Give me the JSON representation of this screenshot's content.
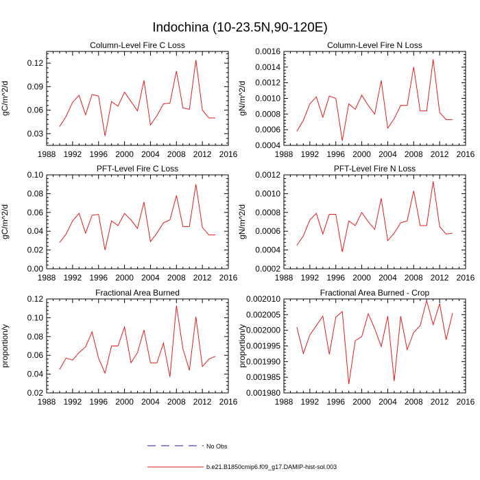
{
  "figure": {
    "title": "Indochina (10-23.5N,90-120E)"
  },
  "legend": {
    "items": [
      {
        "label": "No Obs",
        "color": "#1a1aa8",
        "style": "dashed"
      },
      {
        "label": "b.e21.B1850cmip6.f09_g17.DAMIP-hist-sol.003",
        "color": "#e41a1c",
        "style": "solid"
      }
    ]
  },
  "colors": {
    "model": "#e41a1c",
    "obs": "#1a1aa8"
  },
  "chart_data": [
    {
      "type": "line",
      "title": "Column-Level Fire C Loss",
      "xlabel": "",
      "ylabel": "gC/m^2/d",
      "xlim": [
        1988,
        2016
      ],
      "ylim": [
        0.015,
        0.135
      ],
      "xticks": [
        1988,
        1992,
        1996,
        2000,
        2004,
        2008,
        2012,
        2016
      ],
      "yticks": [
        0.03,
        0.06,
        0.09,
        0.12
      ],
      "ytick_labels": [
        "0.03",
        "0.06",
        "0.09",
        "0.12"
      ],
      "x": [
        1990,
        1991,
        1992,
        1993,
        1994,
        1995,
        1996,
        1997,
        1998,
        1999,
        2000,
        2001,
        2002,
        2003,
        2004,
        2005,
        2006,
        2007,
        2008,
        2009,
        2010,
        2011,
        2012,
        2013,
        2014
      ],
      "series": [
        {
          "values": [
            0.039,
            0.052,
            0.07,
            0.079,
            0.054,
            0.08,
            0.078,
            0.027,
            0.071,
            0.065,
            0.083,
            0.071,
            0.059,
            0.098,
            0.041,
            0.053,
            0.068,
            0.069,
            0.11,
            0.063,
            0.061,
            0.124,
            0.06,
            0.05,
            0.05
          ]
        }
      ]
    },
    {
      "type": "line",
      "title": "Column-Level Fire N Loss",
      "xlabel": "",
      "ylabel": "gN/m^2/d",
      "xlim": [
        1988,
        2016
      ],
      "ylim": [
        0.0004,
        0.0016
      ],
      "xticks": [
        1988,
        1992,
        1996,
        2000,
        2004,
        2008,
        2012,
        2016
      ],
      "yticks": [
        0.0004,
        0.0006,
        0.0008,
        0.001,
        0.0012,
        0.0014,
        0.0016
      ],
      "ytick_labels": [
        "0.0004",
        "0.0006",
        "0.0008",
        "0.0010",
        "0.0012",
        "0.0014",
        "0.0016"
      ],
      "x": [
        1990,
        1991,
        1992,
        1993,
        1994,
        1995,
        1996,
        1997,
        1998,
        1999,
        2000,
        2001,
        2002,
        2003,
        2004,
        2005,
        2006,
        2007,
        2008,
        2009,
        2010,
        2011,
        2012,
        2013,
        2014
      ],
      "series": [
        {
          "values": [
            0.00058,
            0.00072,
            0.00093,
            0.00102,
            0.00076,
            0.00103,
            0.001,
            0.00046,
            0.00093,
            0.00086,
            0.00104,
            0.00091,
            0.0008,
            0.00123,
            0.00062,
            0.00074,
            0.00091,
            0.00091,
            0.0014,
            0.00084,
            0.00084,
            0.0015,
            0.00082,
            0.00073,
            0.00073
          ]
        }
      ]
    },
    {
      "type": "line",
      "title": "PFT-Level Fire C Loss",
      "xlabel": "",
      "ylabel": "gC/m^2/d",
      "xlim": [
        1988,
        2016
      ],
      "ylim": [
        0.0,
        0.1
      ],
      "xticks": [
        1988,
        1992,
        1996,
        2000,
        2004,
        2008,
        2012,
        2016
      ],
      "yticks": [
        0.0,
        0.02,
        0.04,
        0.06,
        0.08,
        0.1
      ],
      "ytick_labels": [
        "0.00",
        "0.02",
        "0.04",
        "0.06",
        "0.08",
        "0.10"
      ],
      "x": [
        1990,
        1991,
        1992,
        1993,
        1994,
        1995,
        1996,
        1997,
        1998,
        1999,
        2000,
        2001,
        2002,
        2003,
        2004,
        2005,
        2006,
        2007,
        2008,
        2009,
        2010,
        2011,
        2012,
        2013,
        2014
      ],
      "series": [
        {
          "values": [
            0.028,
            0.037,
            0.051,
            0.059,
            0.038,
            0.057,
            0.058,
            0.02,
            0.051,
            0.046,
            0.059,
            0.052,
            0.043,
            0.071,
            0.029,
            0.038,
            0.049,
            0.052,
            0.078,
            0.045,
            0.045,
            0.09,
            0.044,
            0.036,
            0.036
          ]
        }
      ]
    },
    {
      "type": "line",
      "title": "PFT-Level Fire N Loss",
      "xlabel": "",
      "ylabel": "gN/m^2/d",
      "xlim": [
        1988,
        2016
      ],
      "ylim": [
        0.0002,
        0.0012
      ],
      "xticks": [
        1988,
        1992,
        1996,
        2000,
        2004,
        2008,
        2012,
        2016
      ],
      "yticks": [
        0.0002,
        0.0004,
        0.0006,
        0.0008,
        0.001,
        0.0012
      ],
      "ytick_labels": [
        "0.0002",
        "0.0004",
        "0.0006",
        "0.0008",
        "0.0010",
        "0.0012"
      ],
      "x": [
        1990,
        1991,
        1992,
        1993,
        1994,
        1995,
        1996,
        1997,
        1998,
        1999,
        2000,
        2001,
        2002,
        2003,
        2004,
        2005,
        2006,
        2007,
        2008,
        2009,
        2010,
        2011,
        2012,
        2013,
        2014
      ],
      "series": [
        {
          "values": [
            0.00045,
            0.00055,
            0.00072,
            0.00079,
            0.00057,
            0.00078,
            0.00078,
            0.00038,
            0.00071,
            0.00066,
            0.0008,
            0.0007,
            0.00062,
            0.00095,
            0.0005,
            0.00058,
            0.00069,
            0.00071,
            0.00103,
            0.00066,
            0.00066,
            0.00113,
            0.00065,
            0.00057,
            0.00058
          ]
        }
      ]
    },
    {
      "type": "line",
      "title": "Fractional Area Burned",
      "xlabel": "",
      "ylabel": "proportion/y",
      "xlim": [
        1988,
        2016
      ],
      "ylim": [
        0.02,
        0.12
      ],
      "xticks": [
        1988,
        1992,
        1996,
        2000,
        2004,
        2008,
        2012,
        2016
      ],
      "yticks": [
        0.02,
        0.04,
        0.06,
        0.08,
        0.1,
        0.12
      ],
      "ytick_labels": [
        "0.02",
        "0.04",
        "0.06",
        "0.08",
        "0.10",
        "0.12"
      ],
      "x": [
        1990,
        1991,
        1992,
        1993,
        1994,
        1995,
        1996,
        1997,
        1998,
        1999,
        2000,
        2001,
        2002,
        2003,
        2004,
        2005,
        2006,
        2007,
        2008,
        2009,
        2010,
        2011,
        2012,
        2013,
        2014
      ],
      "series": [
        {
          "values": [
            0.045,
            0.057,
            0.055,
            0.063,
            0.069,
            0.085,
            0.057,
            0.041,
            0.07,
            0.07,
            0.09,
            0.052,
            0.063,
            0.087,
            0.052,
            0.052,
            0.073,
            0.037,
            0.113,
            0.067,
            0.044,
            0.101,
            0.048,
            0.056,
            0.059
          ]
        }
      ]
    },
    {
      "type": "line",
      "title": "Fractional Area Burned - Crop",
      "xlabel": "",
      "ylabel": "proportion/y",
      "xlim": [
        1988,
        2016
      ],
      "ylim": [
        0.00198,
        0.00201
      ],
      "xticks": [
        1988,
        1992,
        1996,
        2000,
        2004,
        2008,
        2012,
        2016
      ],
      "yticks": [
        0.00198,
        0.001985,
        0.00199,
        0.001995,
        0.002,
        0.002005,
        0.00201
      ],
      "ytick_labels": [
        "0.001980",
        "0.001985",
        "0.001990",
        "0.001995",
        "0.002000",
        "0.002005",
        "0.002010"
      ],
      "x": [
        1990,
        1991,
        1992,
        1993,
        1994,
        1995,
        1996,
        1997,
        1998,
        1999,
        2000,
        2001,
        2002,
        2003,
        2004,
        2005,
        2006,
        2007,
        2008,
        2009,
        2010,
        2011,
        2012,
        2013,
        2014
      ],
      "series": [
        {
          "values": [
            0.002001,
            0.0019926,
            0.0019985,
            0.0020015,
            0.0020045,
            0.0019923,
            0.0020042,
            0.002006,
            0.0019828,
            0.0019967,
            0.001998,
            0.0020053,
            0.0020005,
            0.0019948,
            0.0020045,
            0.0019838,
            0.0020045,
            0.0019938,
            0.0019993,
            0.0020015,
            0.0020095,
            0.0020018,
            0.0020085,
            0.001997,
            0.0020055
          ]
        }
      ]
    }
  ]
}
